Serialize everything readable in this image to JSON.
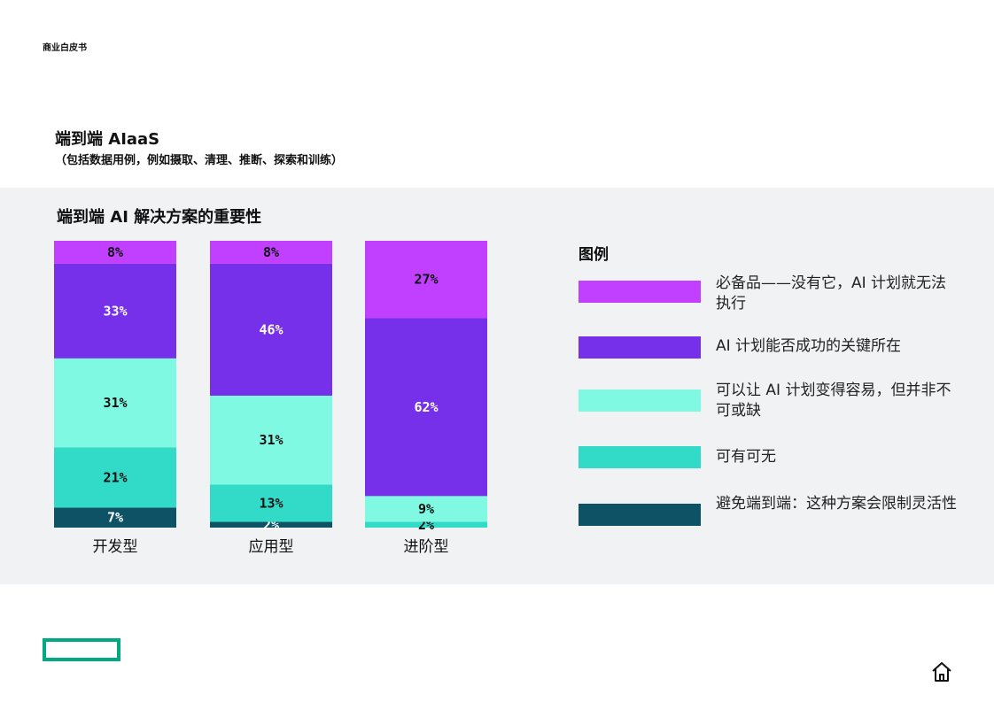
{
  "header": {
    "doc_type": "商业白皮书"
  },
  "section": {
    "title": "端到端 AIaaS",
    "subtitle": "（包括数据用例，例如摄取、清理、推断、探索和训练）"
  },
  "chart_data": {
    "type": "bar",
    "stacked": true,
    "percent": true,
    "title": "端到端 AI 解决方案的重要性",
    "categories": [
      "开发型",
      "应用型",
      "进阶型"
    ],
    "series": [
      {
        "name": "避免端到端：这种方案会限制灵活性",
        "color": "#0e5265",
        "values": [
          7,
          2,
          0
        ]
      },
      {
        "name": "可有可无",
        "color": "#32dac8",
        "values": [
          21,
          13,
          2
        ]
      },
      {
        "name": "可以让 AI 计划变得容易，但并非不可或缺",
        "color": "#7ff9e2",
        "values": [
          31,
          31,
          9
        ]
      },
      {
        "name": "AI 计划能否成功的关键所在",
        "color": "#7630ea",
        "values": [
          33,
          46,
          62
        ]
      },
      {
        "name": "必备品——没有它，AI 计划就无法执行",
        "color": "#c140ff",
        "values": [
          8,
          8,
          27
        ]
      }
    ],
    "legend_title": "图例",
    "legend_order": [
      4,
      3,
      2,
      1,
      0
    ],
    "ylim": [
      0,
      100
    ]
  },
  "home": {
    "icon": "home-icon"
  },
  "logo": {
    "icon": "brand-logo",
    "color": "#01a982"
  }
}
